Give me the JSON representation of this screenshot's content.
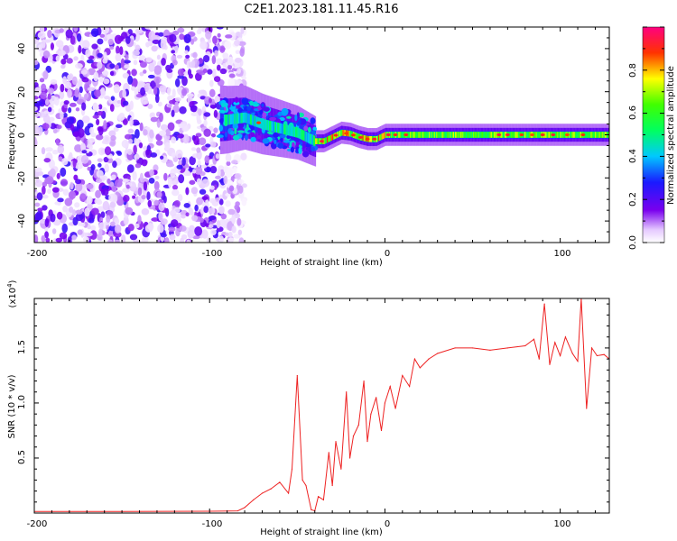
{
  "title": "C2E1.2023.181.11.45.R16",
  "colors": {
    "snr_line": "#ee2222",
    "axis": "#000000"
  },
  "chart_data": [
    {
      "type": "heatmap",
      "xlabel": "Height of straight line (km)",
      "ylabel": "Frequency (Hz)",
      "xlim": [
        -200,
        128
      ],
      "ylim": [
        -50,
        50
      ],
      "xticks": [
        "-200",
        "-100",
        "0",
        "100"
      ],
      "yticks": [
        "-40",
        "-20",
        "0",
        "20",
        "40"
      ],
      "colorbar": {
        "label": "Normalized spectral amplitude",
        "range": [
          0,
          1
        ],
        "ticks": [
          "0.0",
          "0.2",
          "0.4",
          "0.6",
          "0.8"
        ]
      },
      "regions": [
        {
          "x_range": [
            -200,
            -86
          ],
          "freq_range": [
            -50,
            50
          ],
          "amplitude": 0.1,
          "pattern": "noise"
        },
        {
          "x_range": [
            -94,
            -40
          ],
          "freq_range": [
            -12,
            14
          ],
          "amplitude": 0.35,
          "pattern": "broadened"
        },
        {
          "x_range": [
            -40,
            128
          ],
          "freq_range": [
            -2,
            3
          ],
          "amplitude": 0.9,
          "pattern": "narrow line"
        }
      ],
      "peak_frequency": [
        [
          -90,
          7
        ],
        [
          -80,
          8
        ],
        [
          -70,
          5
        ],
        [
          -60,
          3
        ],
        [
          -50,
          1
        ],
        [
          -40,
          -3
        ],
        [
          -35,
          -3
        ],
        [
          -30,
          -1
        ],
        [
          -25,
          1
        ],
        [
          -20,
          0.5
        ],
        [
          -15,
          -1
        ],
        [
          -10,
          -2
        ],
        [
          -5,
          -2
        ],
        [
          0,
          0
        ],
        [
          10,
          0
        ],
        [
          50,
          0
        ],
        [
          128,
          0
        ]
      ]
    },
    {
      "type": "line",
      "xlabel": "Height of straight line (km)",
      "ylabel": "SNR (10 * v/v)",
      "multiplier": "(x10",
      "multiplier_exp": "4",
      "multiplier_close": ")",
      "xlim": [
        -200,
        128
      ],
      "ylim": [
        0,
        19500
      ],
      "xticks": [
        "-200",
        "-100",
        "0",
        "100"
      ],
      "yticks": [
        "0.5",
        "1.0",
        "1.5"
      ],
      "series": [
        {
          "x": [
            -200,
            -150,
            -100,
            -84,
            -80,
            -75,
            -70,
            -65,
            -60,
            -55,
            -53,
            -50,
            -47,
            -45,
            -42,
            -40,
            -38,
            -35,
            -32,
            -30,
            -28,
            -25,
            -22,
            -20,
            -18,
            -15,
            -12,
            -10,
            -8,
            -5,
            -2,
            0,
            3,
            6,
            10,
            14,
            17,
            20,
            25,
            30,
            40,
            50,
            60,
            70,
            80,
            85,
            88,
            91,
            94,
            97,
            100,
            103,
            107,
            110,
            112,
            115,
            118,
            121,
            125,
            128
          ],
          "y": [
            150,
            150,
            160,
            200,
            500,
            1200,
            1800,
            2200,
            2800,
            1800,
            4000,
            12500,
            3000,
            2500,
            300,
            200,
            1500,
            1200,
            5500,
            2500,
            6500,
            4000,
            11000,
            5000,
            7000,
            8000,
            12000,
            6500,
            9000,
            10500,
            7500,
            10000,
            11500,
            9500,
            12500,
            11500,
            14000,
            13200,
            14000,
            14500,
            15000,
            15000,
            14800,
            15000,
            15200,
            15800,
            14000,
            19000,
            13500,
            15500,
            14300,
            16000,
            14500,
            13800,
            19500,
            9500,
            15000,
            14300,
            14400,
            14000
          ]
        }
      ]
    }
  ]
}
